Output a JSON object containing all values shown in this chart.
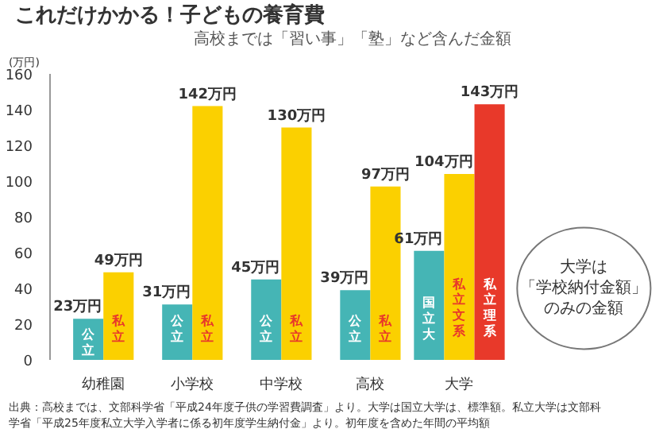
{
  "chart_data": {
    "type": "bar",
    "title": "これだけかかる！子どもの養育費",
    "ylabel": "(万円)",
    "categories": [
      "幼稚園",
      "小学校",
      "中学校",
      "高校",
      "大学"
    ],
    "series": [
      {
        "color": "#45b5b5",
        "values": [
          23,
          31,
          45,
          39,
          61
        ],
        "value_labels": [
          "23万円",
          "31万円",
          "45万円",
          "39万円",
          "61万円"
        ]
      },
      {
        "color": "#fbd000",
        "values": [
          49,
          142,
          130,
          97,
          104
        ],
        "value_labels": [
          "49万円",
          "142万円",
          "130万円",
          "97万円",
          "104万円"
        ]
      },
      {
        "color": "#e8392a",
        "values": [
          null,
          null,
          null,
          null,
          143
        ],
        "value_labels": [
          null,
          null,
          null,
          null,
          "143万円"
        ]
      }
    ],
    "ylim": [
      0,
      160
    ],
    "yticks": [
      0,
      20,
      40,
      60,
      80,
      100,
      120,
      140,
      160
    ],
    "grid": false,
    "annotations": [
      "高校までは「習い事」「塾」など含んだ金額",
      "大学は「学校納付金額」のみの金額",
      "出典：高校までは、文部科学省「平成24年度子供の学習費調査」より。大学は国立大学は、標準額。私立大学は文部科学省「平成25年度私立大学入学者に係る初年度学生納付金」より。初年度を含めた年間の平均額",
      "公立",
      "私立",
      "公立",
      "私立",
      "公立",
      "私立",
      "公立",
      "私立",
      "国立大",
      "私立文系",
      "私立理系"
    ]
  }
}
